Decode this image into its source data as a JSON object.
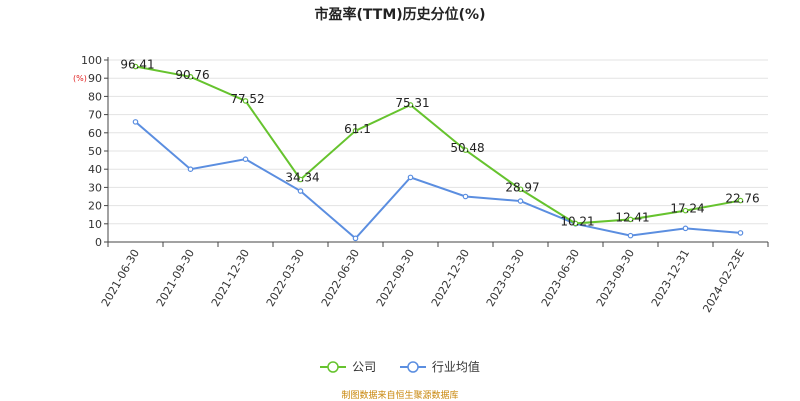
{
  "chart_data": {
    "type": "line",
    "title": "市盈率(TTM)历史分位(%)",
    "ylabel": "(%)",
    "xlabel": "",
    "categories": [
      "2021-06-30",
      "2021-09-30",
      "2021-12-30",
      "2022-03-30",
      "2022-06-30",
      "2022-09-30",
      "2022-12-30",
      "2023-03-30",
      "2023-06-30",
      "2023-09-30",
      "2023-12-31",
      "2024-02-23E"
    ],
    "ylim": [
      0,
      100
    ],
    "yticks": [
      0,
      10,
      20,
      30,
      40,
      50,
      60,
      70,
      80,
      90,
      100
    ],
    "grid": true,
    "legend_position": "bottom",
    "series": [
      {
        "name": "公司",
        "color": "#66c32e",
        "values": [
          96.41,
          90.76,
          77.52,
          34.34,
          61.1,
          75.31,
          50.48,
          28.97,
          10.21,
          12.41,
          17.24,
          22.76
        ],
        "labels": [
          "96.41",
          "90.76",
          "77.52",
          "34.34",
          "61.1",
          "75.31",
          "50.48",
          "28.97",
          "10.21",
          "12.41",
          "17.24",
          "22.76"
        ]
      },
      {
        "name": "行业均值",
        "color": "#5b8ee0",
        "values": [
          66,
          40,
          45.5,
          28,
          2,
          35.5,
          25,
          22.5,
          10,
          3.5,
          7.5,
          5
        ]
      }
    ]
  },
  "legend": {
    "items": [
      "公司",
      "行业均值"
    ]
  },
  "source_text": "制图数据来自恒生聚源数据库"
}
